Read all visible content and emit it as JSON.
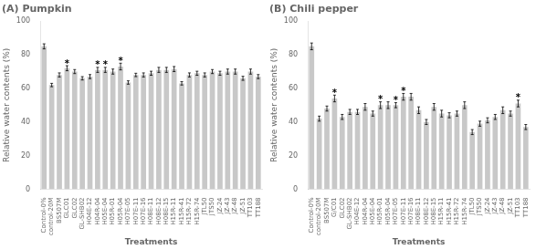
{
  "chart_data": [
    {
      "type": "bar",
      "title": "(A) Pumpkin",
      "ylabel": "Relative water contents (%)",
      "xlabel": "Treatments",
      "categories": [
        "Control-0%",
        "control-20M",
        "BS507M",
        "GLC01",
        "GLC02",
        "GL-SHB02",
        "H04E-12",
        "H04R-04",
        "H05E-04",
        "H05R-01",
        "H05R-04",
        "H07E-05",
        "H07E-11",
        "H07E-16",
        "H08E-11",
        "H08E-12",
        "H08E-15",
        "H15R-11",
        "H15R-41",
        "H15R-72",
        "H15R-74",
        "JTL50",
        "JTS50",
        "JZ-24",
        "JZ-43",
        "JZ-48",
        "JZ-51",
        "TT103",
        "TT188"
      ],
      "values": [
        85,
        62,
        68,
        72,
        70,
        66,
        67,
        71,
        71,
        70,
        73,
        63.5,
        68,
        68,
        69,
        71,
        71,
        71.5,
        63,
        68,
        69,
        68,
        70,
        69,
        70,
        70,
        66,
        70,
        67
      ],
      "errors": [
        1.5,
        1.0,
        1.2,
        1.5,
        1.2,
        1.0,
        1.2,
        1.5,
        1.5,
        1.5,
        2.0,
        1.0,
        1.0,
        1.2,
        1.2,
        1.5,
        1.5,
        1.5,
        1.0,
        1.2,
        1.2,
        1.2,
        1.2,
        1.2,
        1.5,
        1.5,
        1.2,
        1.5,
        1.2
      ],
      "annotations": [
        {
          "category": "GLC01",
          "text": "*"
        },
        {
          "category": "H04R-04",
          "text": "*"
        },
        {
          "category": "H05E-04",
          "text": "*"
        },
        {
          "category": "H05R-04",
          "text": "*"
        }
      ],
      "color": "#c8c8c8",
      "ylim": [
        0,
        100
      ],
      "yticks": [
        0,
        20,
        40,
        60,
        80,
        100
      ],
      "grid": false
    },
    {
      "type": "bar",
      "title": "(B) Chili pepper",
      "ylabel": "Relative water contents (%)",
      "xlabel": "Treatments",
      "categories": [
        "Control-0%",
        "control-20M",
        "BS507M",
        "G/C01",
        "GLC02",
        "GL-SHB02",
        "H04E-12",
        "H04R-04",
        "H05E-04",
        "H05R-01",
        "H05R-04",
        "H07E-05",
        "H07E-11",
        "H07E-16",
        "H08E-11",
        "H08E-12",
        "H08E-15",
        "H15R-11",
        "H15R-41",
        "H15R-72",
        "H15R-74",
        "JTL50",
        "JTS50",
        "JZ-24",
        "JZ-43",
        "JZ-48",
        "JZ-51",
        "TT103",
        "TT188"
      ],
      "values": [
        85,
        42,
        48,
        54,
        43,
        46,
        46,
        49,
        45,
        50,
        50,
        50,
        55,
        55,
        47,
        40,
        49,
        45,
        44,
        45,
        50,
        34,
        39,
        41,
        43,
        47,
        45,
        51,
        37
      ],
      "errors": [
        2.0,
        1.5,
        1.5,
        2.0,
        1.5,
        1.5,
        1.5,
        2.0,
        1.5,
        2.0,
        2.0,
        1.5,
        2.0,
        2.0,
        2.0,
        1.5,
        2.0,
        2.0,
        1.5,
        1.5,
        2.0,
        1.5,
        1.5,
        1.5,
        1.5,
        2.0,
        1.5,
        2.0,
        1.5
      ],
      "annotations": [
        {
          "category": "G/C01",
          "text": "*"
        },
        {
          "category": "H05R-01",
          "text": "*"
        },
        {
          "category": "H07E-05",
          "text": "*"
        },
        {
          "category": "H07E-11",
          "text": "*"
        },
        {
          "category": "TT103",
          "text": "*"
        }
      ],
      "color": "#c8c8c8",
      "ylim": [
        0,
        100
      ],
      "yticks": [
        0,
        20,
        40,
        60,
        80,
        100
      ],
      "grid": false
    }
  ]
}
